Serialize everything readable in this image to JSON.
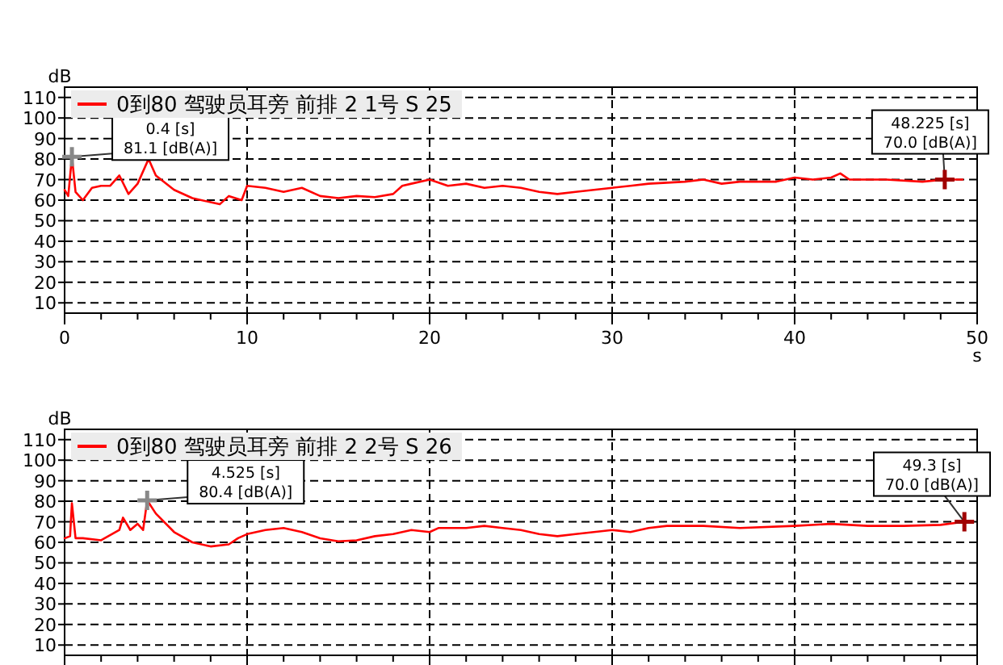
{
  "chart_data": [
    {
      "type": "line",
      "xlabel": "s",
      "ylabel": "dB",
      "xlim": [
        0,
        50
      ],
      "ylim": [
        5,
        115
      ],
      "xticks": [
        0,
        10,
        20,
        30,
        40,
        50
      ],
      "yticks": [
        10,
        20,
        30,
        40,
        50,
        60,
        70,
        80,
        90,
        100,
        110
      ],
      "grid": true,
      "legend": "top left",
      "line_style": "solid",
      "marker": "none",
      "series": [
        {
          "name": "0到80 驾驶员耳旁 前排 2 1号 S 25",
          "color": "#ff0000",
          "x": [
            0,
            0.2,
            0.4,
            0.6,
            1,
            1.5,
            2,
            2.5,
            3,
            3.5,
            4,
            4.6,
            5,
            6,
            7,
            8,
            8.5,
            9,
            9.7,
            10,
            11,
            12,
            13,
            14,
            15,
            16,
            17,
            18,
            18.5,
            19,
            20,
            21,
            22,
            23,
            24,
            25,
            26,
            27,
            28,
            29,
            30,
            31,
            32,
            34,
            35,
            36,
            37,
            39,
            40,
            41,
            42,
            42.5,
            43,
            45,
            47,
            48.225,
            49.2
          ],
          "values": [
            65,
            62,
            81.1,
            64,
            60,
            66,
            67,
            67,
            72,
            63,
            68,
            80,
            72,
            65,
            61,
            59,
            58,
            62,
            60,
            67,
            66,
            64,
            66,
            62,
            61,
            62,
            61.5,
            63,
            67,
            68,
            70,
            67,
            68,
            66,
            67,
            66,
            64,
            63,
            64,
            65,
            66,
            67,
            68,
            69,
            70,
            68,
            69,
            69,
            71,
            70,
            71,
            73,
            70,
            70,
            69,
            70,
            70
          ]
        }
      ],
      "annotations": [
        "0.4 [s]",
        {
          "text": "81.1 [dB(A)]",
          "x": 0.4,
          "y": 81.1
        },
        "48.225 [s]",
        {
          "text": "70.0 [dB(A)]",
          "x": 48.225,
          "y": 70.0
        }
      ]
    },
    {
      "type": "line",
      "ylabel": "dB",
      "xlim": [
        0,
        50
      ],
      "ylim": [
        5,
        115
      ],
      "xticks": [
        0,
        10,
        20,
        30,
        40,
        50
      ],
      "yticks": [
        10,
        20,
        30,
        40,
        50,
        60,
        70,
        80,
        90,
        100,
        110
      ],
      "grid": true,
      "legend": "top left",
      "line_style": "solid",
      "marker": "none",
      "tick_labels": "y",
      "series": [
        {
          "name": "0到80 驾驶员耳旁 前排 2 2号 S 26",
          "color": "#ff0000",
          "x": [
            0,
            0.3,
            0.4,
            0.6,
            1,
            2,
            3,
            3.2,
            3.6,
            4,
            4.3,
            4.525,
            5,
            6,
            7,
            8,
            9,
            9.5,
            10,
            11,
            12,
            13,
            14,
            15,
            16,
            17,
            18,
            19,
            20,
            20.5,
            22,
            23,
            24,
            25,
            26,
            27,
            28,
            29,
            30,
            31,
            32,
            33,
            35,
            37,
            40,
            42,
            44,
            46,
            48,
            49.3
          ],
          "values": [
            62,
            63,
            79,
            62,
            62,
            61,
            66,
            72,
            66,
            69,
            66,
            80.4,
            74,
            65,
            60,
            58,
            59,
            62,
            64,
            66,
            67,
            65,
            62,
            60.5,
            61,
            63,
            64,
            66,
            65,
            67,
            67,
            68,
            67,
            66,
            64,
            63,
            64,
            65,
            66,
            65,
            67,
            68,
            68,
            67,
            68,
            69,
            68,
            68,
            68.5,
            70
          ]
        }
      ],
      "annotations": [
        "4.525 [s]",
        {
          "text": "80.4 [dB(A)]",
          "x": 4.525,
          "y": 80.4
        },
        "49.3 [s]",
        {
          "text": "70.0 [dB(A)]",
          "x": 49.3,
          "y": 70.0
        }
      ]
    }
  ]
}
